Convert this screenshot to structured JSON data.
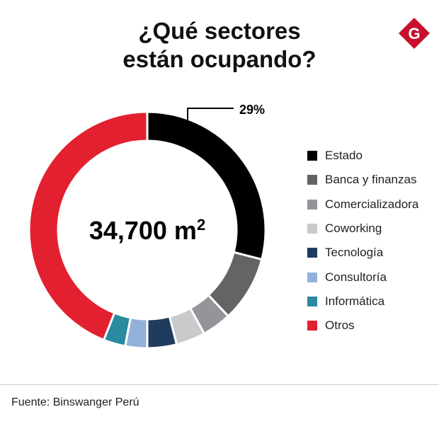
{
  "title_line1": "¿Qué sectores",
  "title_line2": "están ocupando?",
  "logo_letter": "G",
  "source": "Fuente: Binswanger Perú",
  "chart_data": {
    "type": "pie",
    "variant": "donut",
    "center_label": "34,700 m",
    "center_label_sup": "2",
    "annotation": "29%",
    "categories": [
      "Estado",
      "Banca y finanzas",
      "Comercializadora",
      "Coworking",
      "Tecnología",
      "Consultoría",
      "Informática",
      "Otros"
    ],
    "values": [
      29,
      9,
      4,
      4,
      4,
      3,
      3,
      44
    ],
    "colors": [
      "#000000",
      "#636466",
      "#939598",
      "#c9cacc",
      "#1f3b5e",
      "#93b1da",
      "#2a8a9f",
      "#e2202f"
    ],
    "legend_position": "right"
  }
}
